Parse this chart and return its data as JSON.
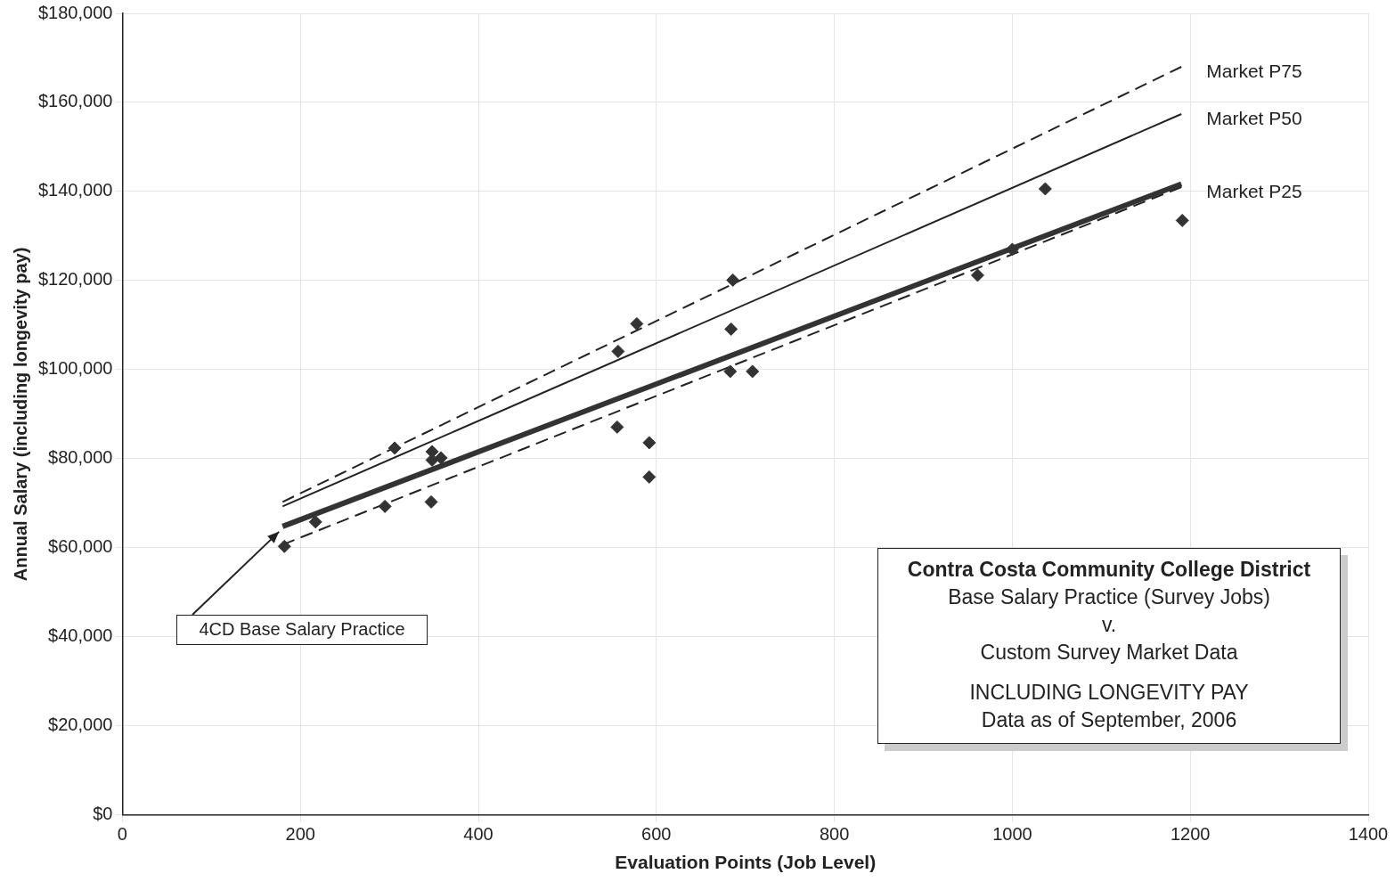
{
  "chart_data": {
    "type": "line",
    "xlabel": "Evaluation Points (Job Level)",
    "ylabel": "Annual Salary (including longevity pay)",
    "xlim": [
      0,
      1400
    ],
    "xticks": [
      0,
      200,
      400,
      600,
      800,
      1000,
      1200,
      1400
    ],
    "ylim": [
      0,
      180000
    ],
    "yticks": [
      {
        "value": 0,
        "label": "$0"
      },
      {
        "value": 20000,
        "label": "$20,000"
      },
      {
        "value": 40000,
        "label": "$40,000"
      },
      {
        "value": 60000,
        "label": "$60,000"
      },
      {
        "value": 80000,
        "label": "$80,000"
      },
      {
        "value": 100000,
        "label": "$100,000"
      },
      {
        "value": 120000,
        "label": "$120,000"
      },
      {
        "value": 140000,
        "label": "$140,000"
      },
      {
        "value": 160000,
        "label": "$160,000"
      },
      {
        "value": 180000,
        "label": "$180,000"
      }
    ],
    "grid": true,
    "legend": false,
    "series": [
      {
        "type": "scatter",
        "marker": "diamond",
        "color": "#333333",
        "x": [
          182,
          217,
          295,
          306,
          347,
          348,
          348,
          358,
          556,
          557,
          578,
          592,
          592,
          683,
          684,
          686,
          708,
          961,
          1000,
          1037,
          1191
        ],
        "values": [
          60300,
          65800,
          69300,
          82400,
          70300,
          81600,
          79700,
          80200,
          87100,
          104100,
          110300,
          83600,
          75900,
          99600,
          109100,
          120100,
          99600,
          121200,
          127000,
          140600,
          133500
        ]
      },
      {
        "name": "Market P75",
        "color": "#222222",
        "line_style": "dashed",
        "x": [
          180,
          1190
        ],
        "values": [
          70300,
          168000
        ]
      },
      {
        "name": "Market P50",
        "color": "#222222",
        "line_style": "solid",
        "x": [
          180,
          1190
        ],
        "values": [
          69300,
          157400
        ]
      },
      {
        "color": "#333333",
        "line_style": "solid",
        "x": [
          180,
          1190
        ],
        "values": [
          64800,
          141700
        ]
      },
      {
        "name": "Market P25",
        "color": "#222222",
        "line_style": "dashed",
        "x": [
          180,
          1190
        ],
        "values": [
          60700,
          141000
        ]
      }
    ],
    "annotations": [
      "4CD Base Salary Practice",
      "Contra Costa Community College District",
      "Base Salary Practice (Survey Jobs)",
      "v.",
      "Custom Survey Market Data",
      "INCLUDING LONGEVITY PAY",
      "Data as of September, 2006"
    ]
  }
}
